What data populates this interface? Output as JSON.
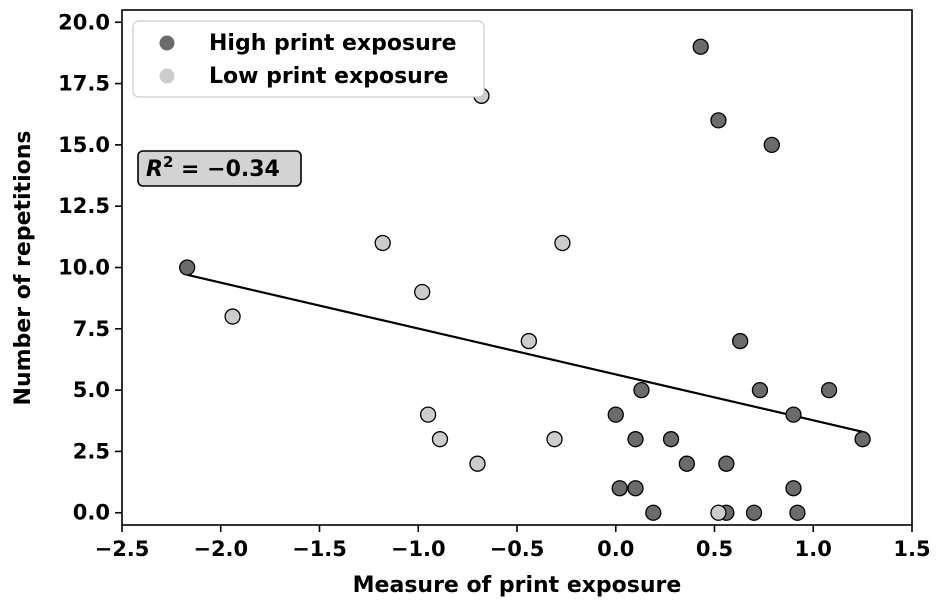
{
  "chart_data": {
    "type": "scatter",
    "title": "",
    "xlabel": "Measure of print exposure",
    "ylabel": "Number of repetitions",
    "xlim": [
      -2.5,
      1.5
    ],
    "ylim": [
      -0.5,
      20.5
    ],
    "xticks": [
      -2.5,
      -2.0,
      -1.5,
      -1.0,
      -0.5,
      0.0,
      0.5,
      1.0,
      1.5
    ],
    "xtick_labels": [
      "−2.5",
      "−2.0",
      "−1.5",
      "−1.0",
      "−0.5",
      "0.0",
      "0.5",
      "1.0",
      "1.5"
    ],
    "yticks": [
      0,
      2.5,
      5,
      7.5,
      10,
      12.5,
      15,
      17.5,
      20
    ],
    "ytick_labels": [
      "0.0",
      "2.5",
      "5.0",
      "7.5",
      "10.0",
      "12.5",
      "15.0",
      "17.5",
      "20.0"
    ],
    "grid": false,
    "legend_position": "top-left",
    "annotation": {
      "r2_label": "R",
      "r2_sup": "2",
      "r2_value": " = −0.34"
    },
    "series": [
      {
        "name": "High print exposure",
        "color": "#6b6b6b",
        "points": [
          {
            "x": -2.17,
            "y": 10
          },
          {
            "x": 0.43,
            "y": 19
          },
          {
            "x": 0.52,
            "y": 16
          },
          {
            "x": 0.79,
            "y": 15
          },
          {
            "x": 0.63,
            "y": 7
          },
          {
            "x": 0.13,
            "y": 5
          },
          {
            "x": 0.73,
            "y": 5
          },
          {
            "x": 1.08,
            "y": 5
          },
          {
            "x": 0.0,
            "y": 4
          },
          {
            "x": 0.9,
            "y": 4
          },
          {
            "x": 0.1,
            "y": 3
          },
          {
            "x": 0.28,
            "y": 3
          },
          {
            "x": 1.25,
            "y": 3
          },
          {
            "x": 0.36,
            "y": 2
          },
          {
            "x": 0.56,
            "y": 2
          },
          {
            "x": 0.02,
            "y": 1
          },
          {
            "x": 0.1,
            "y": 1
          },
          {
            "x": 0.9,
            "y": 1
          },
          {
            "x": 0.19,
            "y": 0
          },
          {
            "x": 0.56,
            "y": 0
          },
          {
            "x": 0.7,
            "y": 0
          },
          {
            "x": 0.92,
            "y": 0
          }
        ]
      },
      {
        "name": "Low print exposure",
        "color": "#cccccc",
        "points": [
          {
            "x": -0.68,
            "y": 17
          },
          {
            "x": -1.18,
            "y": 11
          },
          {
            "x": -0.27,
            "y": 11
          },
          {
            "x": -0.98,
            "y": 9
          },
          {
            "x": -1.94,
            "y": 8
          },
          {
            "x": -0.44,
            "y": 7
          },
          {
            "x": -0.95,
            "y": 4
          },
          {
            "x": -0.89,
            "y": 3
          },
          {
            "x": -0.31,
            "y": 3
          },
          {
            "x": -0.7,
            "y": 2
          },
          {
            "x": 0.52,
            "y": 0
          }
        ]
      }
    ],
    "fit_line": {
      "x": [
        -2.17,
        1.25
      ],
      "y": [
        9.7,
        3.3
      ],
      "color": "#000000"
    },
    "colors": {
      "marker_edge": "#000000",
      "legend_box_edge": "#cccccc",
      "annotation_box_fill": "#d3d3d3"
    }
  }
}
